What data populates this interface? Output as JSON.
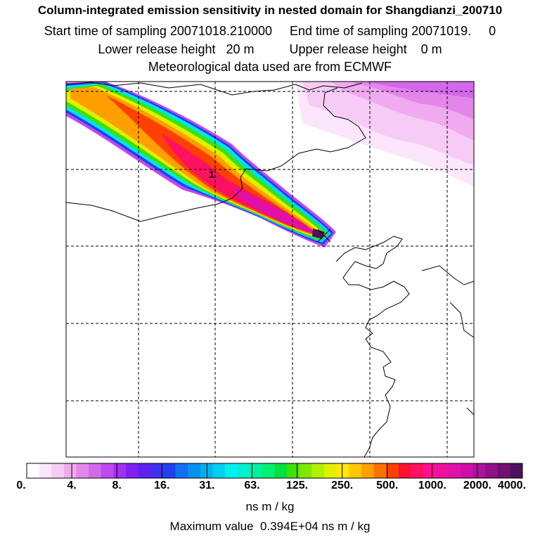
{
  "header": {
    "title": "Column-integrated emission sensitivity in nested domain for Shangdianzi_200710",
    "sampling_line": "Start time of sampling 20071018.210000     End time of sampling 20071019.     0",
    "height_line": "Lower release height   20 m          Upper release height    0 m",
    "met_line": "Meteorological data used are from ECMWF"
  },
  "map": {
    "point_label": "1"
  },
  "colorbar": {
    "ticks": [
      "0.",
      "4.",
      "8.",
      "16.",
      "31.",
      "63.",
      "125.",
      "250.",
      "500.",
      "1000.",
      "2000.",
      "4000."
    ],
    "unit": "ns m / kg",
    "colors": [
      "#ffffff",
      "#fbe6fb",
      "#f6ccf6",
      "#efaaf0",
      "#e386ea",
      "#d468ec",
      "#c048f0",
      "#a030f2",
      "#8020f0",
      "#6020f0",
      "#4030f0",
      "#2040f0",
      "#1070f0",
      "#0890f0",
      "#00b0f0",
      "#00d0f0",
      "#00f0f0",
      "#00f0d0",
      "#00f0a0",
      "#00f070",
      "#00e040",
      "#40e000",
      "#80e800",
      "#b0f000",
      "#e0f000",
      "#ffe800",
      "#ffc800",
      "#ffa000",
      "#ff7000",
      "#ff4000",
      "#ff1030",
      "#ff1060",
      "#ff1090",
      "#f010a0",
      "#e010a8",
      "#cc10a8",
      "#b010a0",
      "#901088",
      "#701070",
      "#501060"
    ]
  },
  "footer": {
    "maximum": "Maximum value  0.394E+04 ns m / kg"
  }
}
